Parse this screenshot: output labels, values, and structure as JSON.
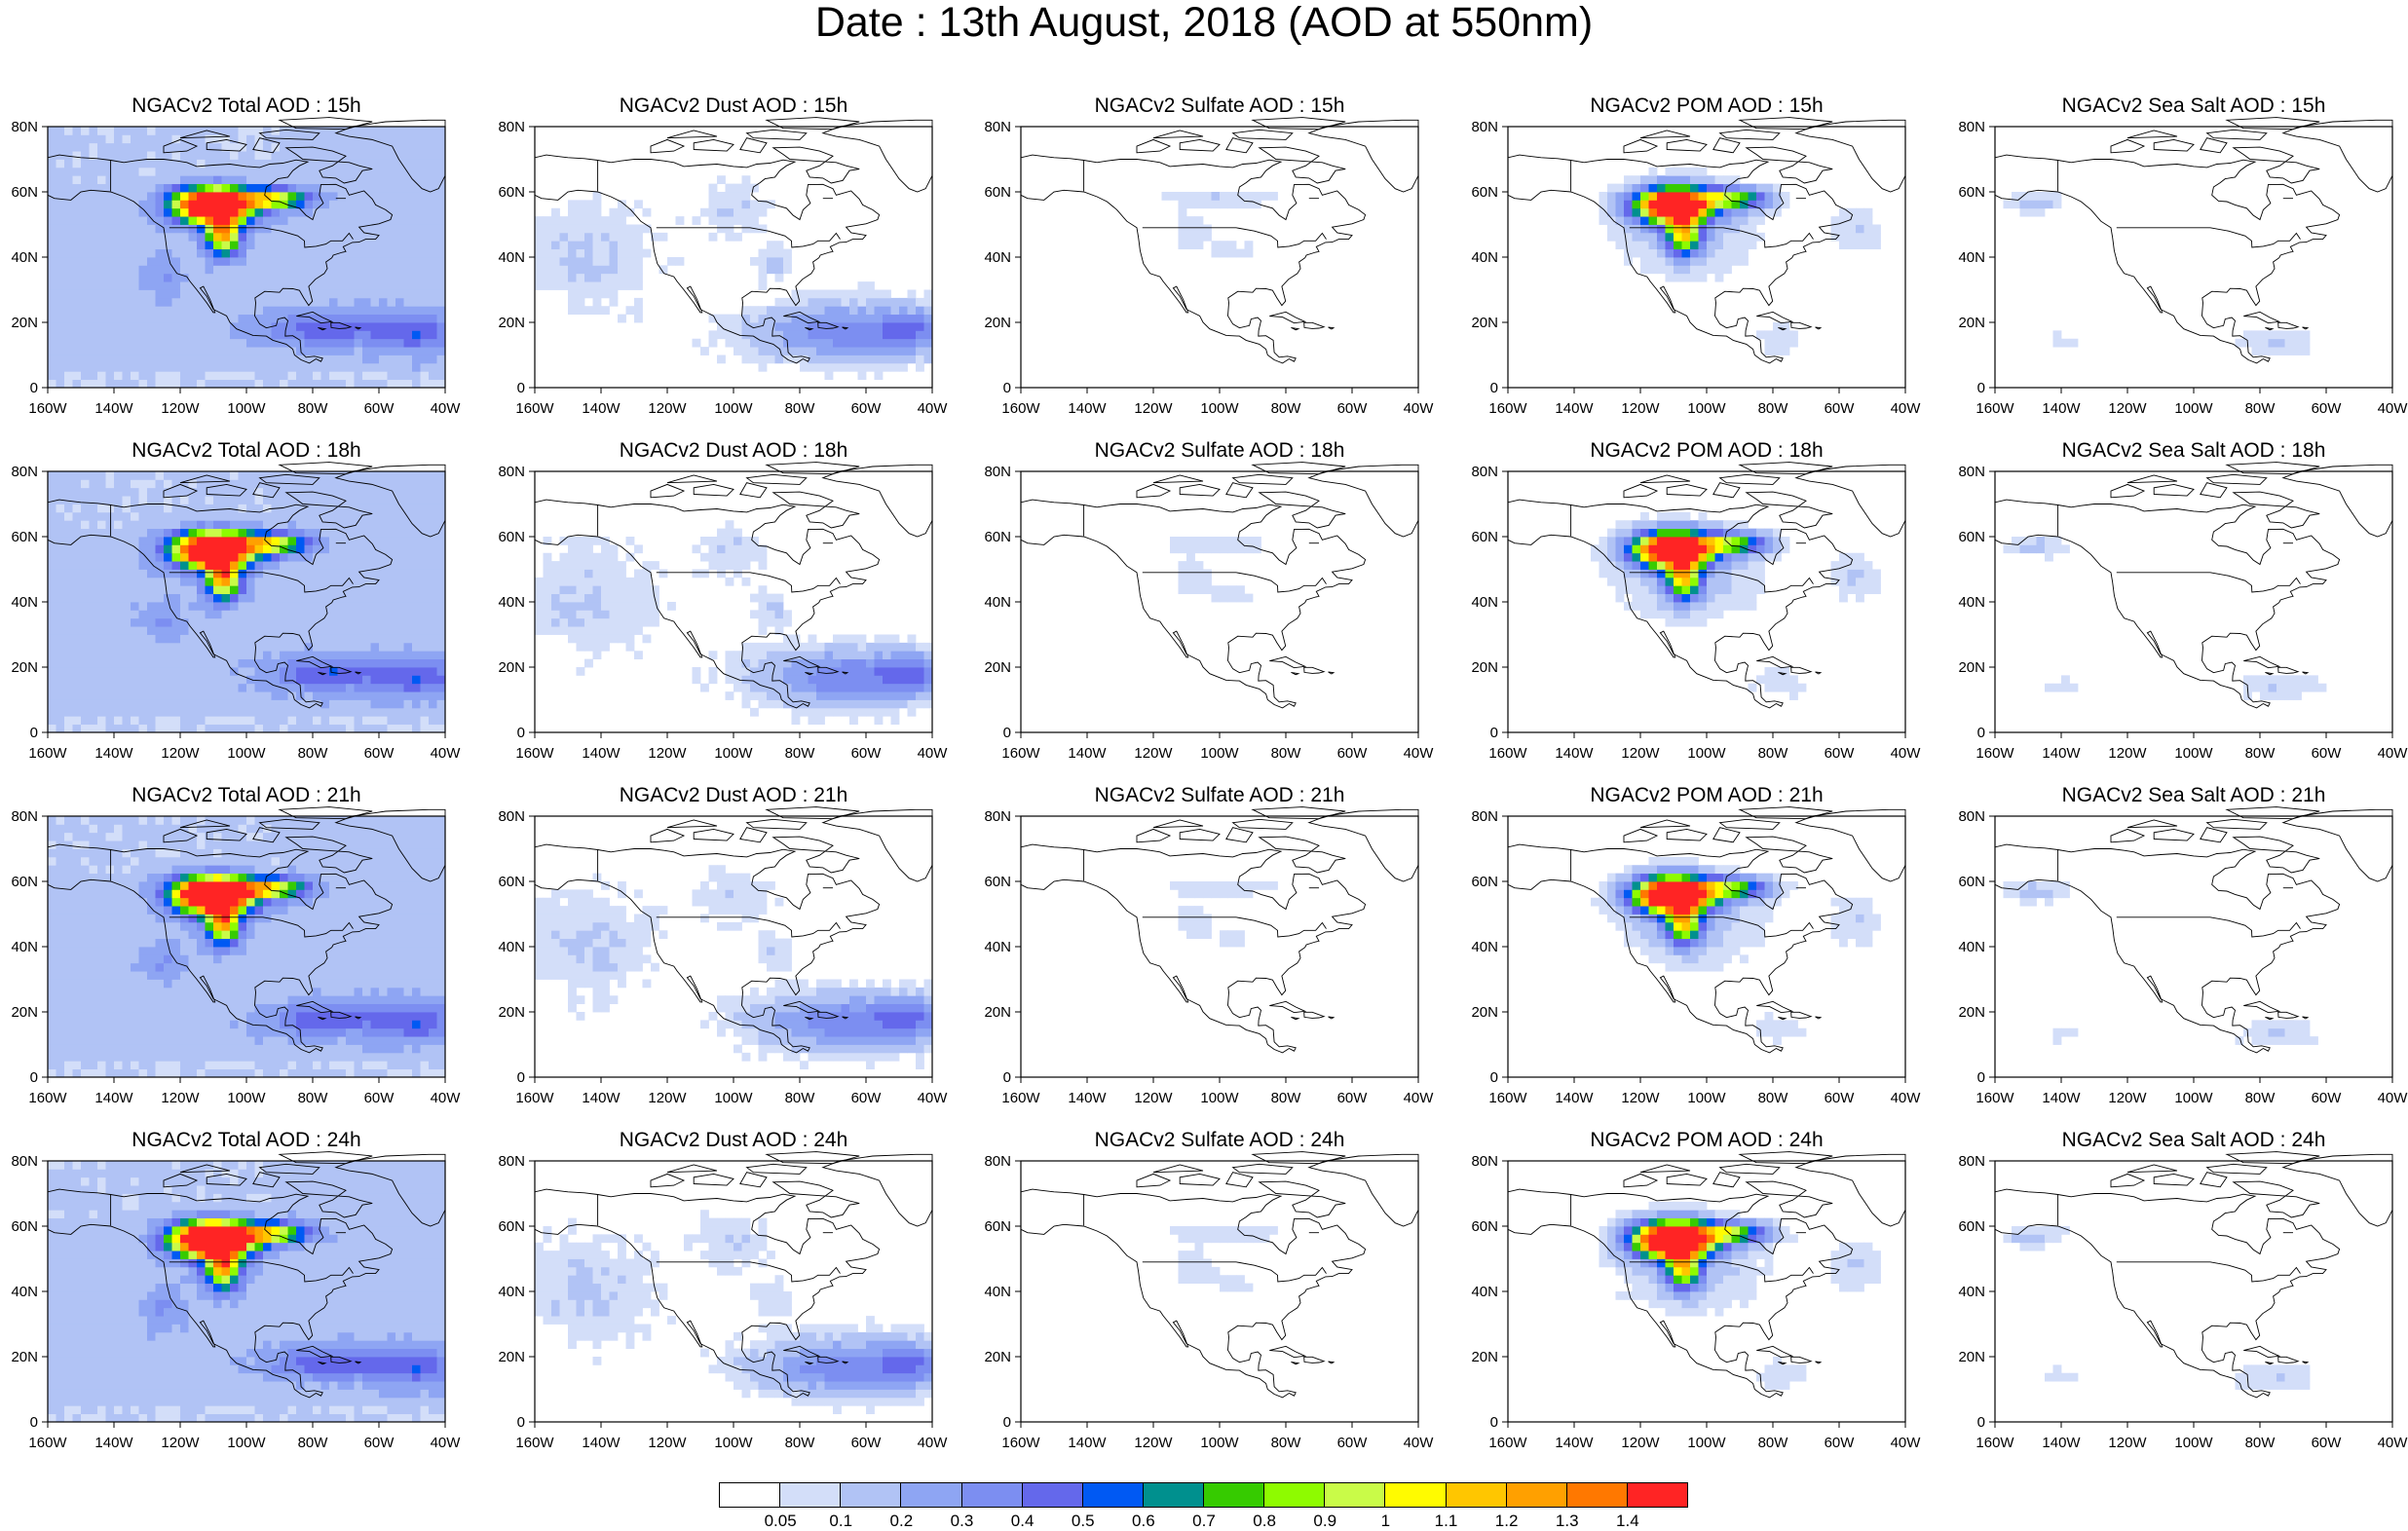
{
  "title": "Date : 13th August, 2018 (AOD at 550nm)",
  "panels": [
    {
      "title": "NGACv2 Total AOD : 15h",
      "species": "total",
      "hour": "15h"
    },
    {
      "title": "NGACv2 Dust AOD : 15h",
      "species": "dust",
      "hour": "15h"
    },
    {
      "title": "NGACv2 Sulfate AOD : 15h",
      "species": "sulfate",
      "hour": "15h"
    },
    {
      "title": "NGACv2 POM AOD : 15h",
      "species": "pom",
      "hour": "15h"
    },
    {
      "title": "NGACv2 Sea Salt AOD : 15h",
      "species": "seasalt",
      "hour": "15h"
    },
    {
      "title": "NGACv2 Total AOD : 18h",
      "species": "total",
      "hour": "18h"
    },
    {
      "title": "NGACv2 Dust AOD : 18h",
      "species": "dust",
      "hour": "18h"
    },
    {
      "title": "NGACv2 Sulfate AOD : 18h",
      "species": "sulfate",
      "hour": "18h"
    },
    {
      "title": "NGACv2 POM AOD : 18h",
      "species": "pom",
      "hour": "18h"
    },
    {
      "title": "NGACv2 Sea Salt AOD : 18h",
      "species": "seasalt",
      "hour": "18h"
    },
    {
      "title": "NGACv2 Total AOD : 21h",
      "species": "total",
      "hour": "21h"
    },
    {
      "title": "NGACv2 Dust AOD : 21h",
      "species": "dust",
      "hour": "21h"
    },
    {
      "title": "NGACv2 Sulfate AOD : 21h",
      "species": "sulfate",
      "hour": "21h"
    },
    {
      "title": "NGACv2 POM AOD : 21h",
      "species": "pom",
      "hour": "21h"
    },
    {
      "title": "NGACv2 Sea Salt AOD : 21h",
      "species": "seasalt",
      "hour": "21h"
    },
    {
      "title": "NGACv2 Total AOD : 24h",
      "species": "total",
      "hour": "24h"
    },
    {
      "title": "NGACv2 Dust AOD : 24h",
      "species": "dust",
      "hour": "24h"
    },
    {
      "title": "NGACv2 Sulfate AOD : 24h",
      "species": "sulfate",
      "hour": "24h"
    },
    {
      "title": "NGACv2 POM AOD : 24h",
      "species": "pom",
      "hour": "24h"
    },
    {
      "title": "NGACv2 Sea Salt  AOD : 24h",
      "species": "seasalt",
      "hour": "24h"
    }
  ],
  "axes": {
    "x_ticks": [
      "160W",
      "140W",
      "120W",
      "100W",
      "80W",
      "60W",
      "40W"
    ],
    "y_ticks": [
      "0",
      "20N",
      "40N",
      "60N",
      "80N"
    ],
    "lon_range": [
      -160,
      -40
    ],
    "lat_range": [
      0,
      80
    ]
  },
  "colorbar": {
    "colors": [
      "#ffffff",
      "#d3def9",
      "#b1c3f5",
      "#8ea5f3",
      "#7c8ef1",
      "#6468eb",
      "#0059f3",
      "#00908e",
      "#36cb00",
      "#8efb00",
      "#c9fb48",
      "#fffb00",
      "#ffc600",
      "#ffa000",
      "#ff7800",
      "#ff2424"
    ],
    "labels": [
      "0.05",
      "0.1",
      "0.2",
      "0.3",
      "0.4",
      "0.5",
      "0.6",
      "0.7",
      "0.8",
      "0.9",
      "1",
      "1.1",
      "1.2",
      "1.3",
      "1.4"
    ]
  }
}
